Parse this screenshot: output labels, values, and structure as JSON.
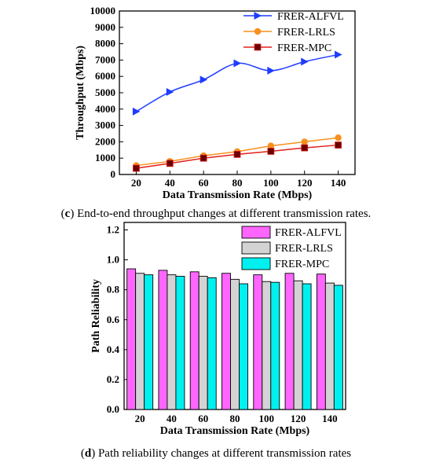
{
  "chart_data": [
    {
      "type": "line",
      "x": [
        20,
        40,
        60,
        80,
        100,
        120,
        140
      ],
      "xticks": [
        "20",
        "40",
        "60",
        "80",
        "100",
        "120",
        "140"
      ],
      "xlim": [
        10,
        150
      ],
      "yticks": [
        "0",
        "1000",
        "2000",
        "3000",
        "4000",
        "5000",
        "6000",
        "7000",
        "8000",
        "9000",
        "10000"
      ],
      "ylim": [
        0,
        10000
      ],
      "xlabel": "Data Transmission Rate (Mbps)",
      "ylabel": "Throughput (Mbps)",
      "legend_position": "top-right",
      "caption_label": "c",
      "caption_text": " End-to-end throughput changes at different transmission rates.",
      "series": [
        {
          "name": "FRER-ALFVL",
          "values": [
            3850,
            5050,
            5800,
            6800,
            6350,
            6900,
            7330
          ],
          "color": "#1f3cff",
          "marker": "triangle-right",
          "smooth": true
        },
        {
          "name": "FRER-LRLS",
          "values": [
            550,
            800,
            1150,
            1400,
            1750,
            2000,
            2250
          ],
          "color": "#f7901e",
          "marker": "circle",
          "smooth": false
        },
        {
          "name": "FRER-MPC",
          "values": [
            380,
            680,
            1000,
            1230,
            1420,
            1630,
            1800
          ],
          "color": "#e0201c",
          "marker": "square",
          "smooth": false
        }
      ]
    },
    {
      "type": "bar",
      "categories": [
        "20",
        "40",
        "60",
        "80",
        "100",
        "120",
        "140"
      ],
      "yticks": [
        "0.0",
        "0.2",
        "0.4",
        "0.6",
        "0.8",
        "1.0",
        "1.2"
      ],
      "ylim": [
        0,
        1.25
      ],
      "xlabel": "Data Transmission Rate (Mbps)",
      "ylabel": "Path Reliability",
      "legend_position": "top-right",
      "caption_label": "d",
      "caption_text": " Path reliability changes at different transmission rates",
      "series": [
        {
          "name": "FRER-ALFVL",
          "values": [
            0.94,
            0.93,
            0.92,
            0.91,
            0.9,
            0.91,
            0.905
          ],
          "color": "#ff66ff"
        },
        {
          "name": "FRER-LRLS",
          "values": [
            0.91,
            0.9,
            0.89,
            0.87,
            0.855,
            0.86,
            0.845
          ],
          "color": "#d3d3d3"
        },
        {
          "name": "FRER-MPC",
          "values": [
            0.9,
            0.89,
            0.88,
            0.84,
            0.85,
            0.84,
            0.83
          ],
          "color": "#00f0f0"
        }
      ]
    }
  ]
}
